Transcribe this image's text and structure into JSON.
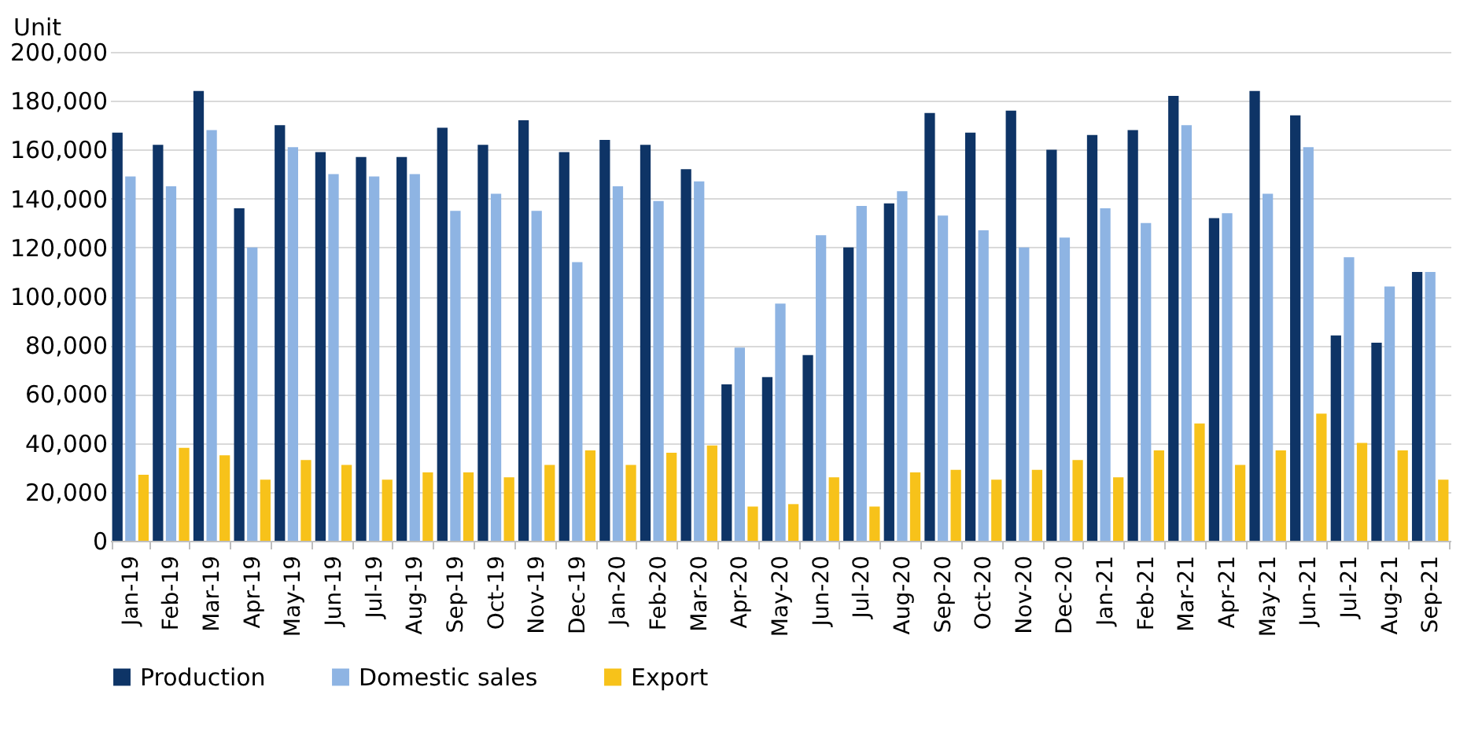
{
  "chart_data": {
    "type": "bar",
    "ylabel": "Unit",
    "categories": [
      "Jan-19",
      "Feb-19",
      "Mar-19",
      "Apr-19",
      "May-19",
      "Jun-19",
      "Jul-19",
      "Aug-19",
      "Sep-19",
      "Oct-19",
      "Nov-19",
      "Dec-19",
      "Jan-20",
      "Feb-20",
      "Mar-20",
      "Apr-20",
      "May-20",
      "Jun-20",
      "Jul-20",
      "Aug-20",
      "Sep-20",
      "Oct-20",
      "Nov-20",
      "Dec-20",
      "Jan-21",
      "Feb-21",
      "Mar-21",
      "Apr-21",
      "May-21",
      "Jun-21",
      "Jul-21",
      "Aug-21",
      "Sep-21"
    ],
    "series": [
      {
        "name": "Production",
        "color": "#0e3466",
        "values": [
          167000,
          162000,
          184000,
          136000,
          170000,
          159000,
          157000,
          157000,
          169000,
          162000,
          172000,
          159000,
          164000,
          162000,
          152000,
          64000,
          67000,
          76000,
          120000,
          138000,
          175000,
          167000,
          176000,
          160000,
          166000,
          168000,
          182000,
          132000,
          184000,
          174000,
          84000,
          81000,
          110000
        ]
      },
      {
        "name": "Domestic sales",
        "color": "#8eb4e3",
        "values": [
          149000,
          145000,
          168000,
          120000,
          161000,
          150000,
          149000,
          150000,
          135000,
          142000,
          135000,
          114000,
          145000,
          139000,
          147000,
          79000,
          97000,
          125000,
          137000,
          143000,
          133000,
          127000,
          120000,
          124000,
          136000,
          130000,
          170000,
          134000,
          142000,
          161000,
          116000,
          104000,
          110000
        ]
      },
      {
        "name": "Export",
        "color": "#f7c21a",
        "values": [
          27000,
          38000,
          35000,
          25000,
          33000,
          31000,
          25000,
          28000,
          28000,
          26000,
          31000,
          37000,
          31000,
          36000,
          39000,
          14000,
          15000,
          26000,
          14000,
          28000,
          29000,
          25000,
          29000,
          33000,
          26000,
          37000,
          48000,
          31000,
          37000,
          52000,
          40000,
          37000,
          25000
        ]
      }
    ],
    "ylim": [
      0,
      200000
    ],
    "yticks": [
      0,
      {
        "value": 20000,
        "label": "20,000"
      },
      {
        "value": 40000,
        "label": "40,000"
      },
      {
        "value": 60000,
        "label": "60,000"
      },
      {
        "value": 80000,
        "label": "80,000"
      },
      {
        "value": 100000,
        "label": "100,000"
      },
      {
        "value": 120000,
        "label": "120,000"
      },
      {
        "value": 140000,
        "label": "140,000"
      },
      {
        "value": 160000,
        "label": "160,000"
      },
      {
        "value": 180000,
        "label": "180,000"
      },
      {
        "value": 200000,
        "label": "200,000"
      }
    ],
    "grid": "y",
    "legend": "bottom"
  }
}
